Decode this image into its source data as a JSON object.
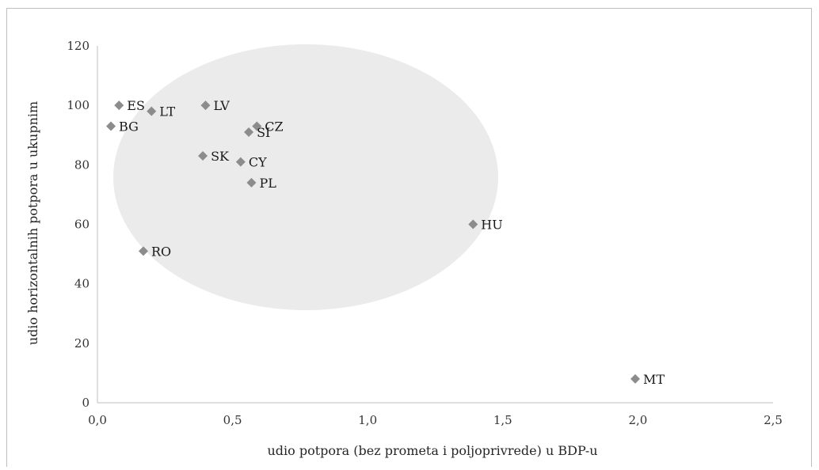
{
  "chart_data": {
    "type": "scatter",
    "xlabel": "udio potpora (bez prometa i poljoprivrede) u BDP-u",
    "ylabel": "udio horizontalnih potpora u ukupnim",
    "xlim": [
      0,
      2.5
    ],
    "ylim": [
      0,
      120
    ],
    "x_ticks": [
      "0,0",
      "0,5",
      "1,0",
      "1,5",
      "2,0",
      "2,5"
    ],
    "y_ticks": [
      "0",
      "20",
      "40",
      "60",
      "80",
      "100",
      "120"
    ],
    "grid": false,
    "marker": "diamond",
    "marker_color": "#8c8c8c",
    "highlight_ellipse_color": "#ebebeb",
    "points": [
      {
        "label": "ES",
        "x": 0.08,
        "y": 100
      },
      {
        "label": "LT",
        "x": 0.2,
        "y": 98
      },
      {
        "label": "BG",
        "x": 0.05,
        "y": 93
      },
      {
        "label": "LV",
        "x": 0.4,
        "y": 100
      },
      {
        "label": "CZ",
        "x": 0.59,
        "y": 93
      },
      {
        "label": "SI",
        "x": 0.56,
        "y": 91
      },
      {
        "label": "SK",
        "x": 0.39,
        "y": 83
      },
      {
        "label": "CY",
        "x": 0.53,
        "y": 81
      },
      {
        "label": "PL",
        "x": 0.57,
        "y": 74
      },
      {
        "label": "HU",
        "x": 1.39,
        "y": 60
      },
      {
        "label": "RO",
        "x": 0.17,
        "y": 51
      },
      {
        "label": "MT",
        "x": 1.99,
        "y": 8
      }
    ]
  }
}
